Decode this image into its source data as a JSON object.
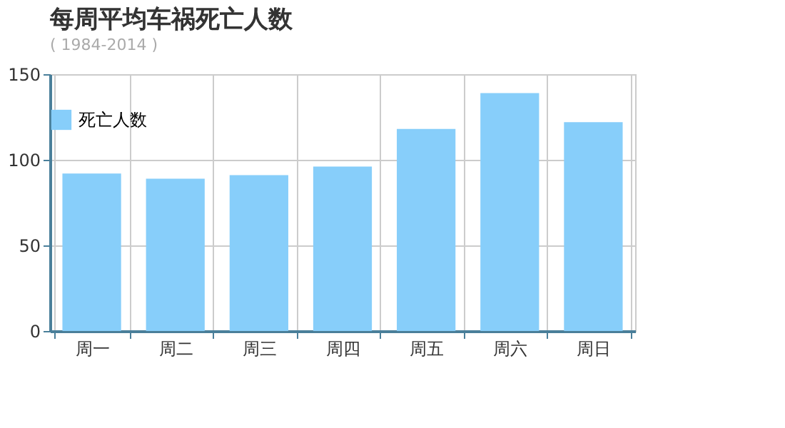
{
  "chart_data": {
    "type": "bar",
    "title": "每周平均车祸死亡人数",
    "subtitle": "( 1984-2014 )",
    "categories": [
      "周一",
      "周二",
      "周三",
      "周四",
      "周五",
      "周六",
      "周日"
    ],
    "series": [
      {
        "name": "死亡人数",
        "color": "#87cefa",
        "values": [
          92,
          89,
          91,
          96,
          118,
          139,
          122
        ]
      }
    ],
    "ylim": [
      0,
      150
    ],
    "yticks": [
      0,
      50,
      100,
      150
    ],
    "grid": true,
    "legend": "top"
  }
}
